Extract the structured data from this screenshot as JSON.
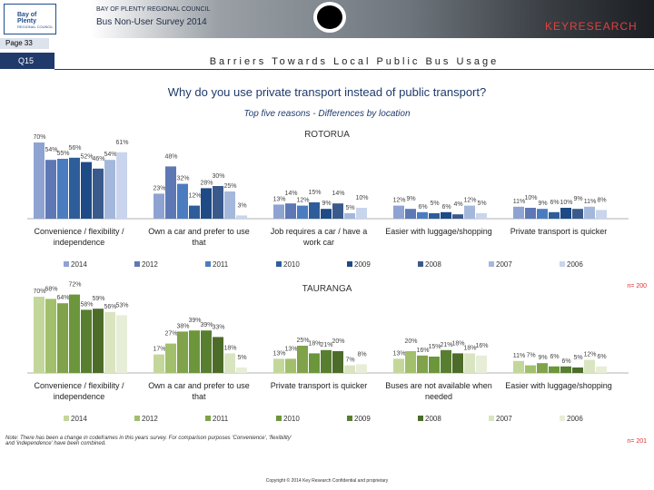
{
  "header": {
    "org": "BAY OF PLENTY REGIONAL COUNCIL",
    "survey": "Bus Non-User Survey 2014",
    "logo_left": "Bay of Plenty",
    "logo_left_sub": "REGIONAL COUNCIL",
    "logo_right": "KEYRESEARCH",
    "page": "Page 33",
    "question": "Q15",
    "section": "Barriers Towards Local Public Bus Usage"
  },
  "question_text": "Why do you use private transport instead of public transport?",
  "subtitle": "Top five reasons - Differences by location",
  "chart_data": [
    {
      "type": "bar",
      "title": "ROTORUA",
      "sample": "n= 200",
      "categories": [
        "Convenience / flexibility / independence",
        "Own a car and prefer to use that",
        "Job requires a car / have a work car",
        "Easier with luggage/shopping",
        "Private transport is quicker"
      ],
      "series": [
        {
          "name": "2014",
          "color": "#8fa3d2",
          "values": [
            70,
            23,
            13,
            12,
            11
          ],
          "value_labels": [
            "70%",
            "23%",
            "13%",
            "12%",
            "11%"
          ]
        },
        {
          "name": "2012",
          "color": "#5d78b5",
          "values": [
            54,
            48,
            14,
            9,
            10
          ],
          "value_labels": [
            "54%",
            "48%",
            "14%",
            "9%",
            "10%"
          ]
        },
        {
          "name": "2011",
          "color": "#4b7cc0",
          "values": [
            55,
            32,
            12,
            6,
            9
          ],
          "value_labels": [
            "55%",
            "32%",
            "12%",
            "6%",
            "9%"
          ]
        },
        {
          "name": "2010",
          "color": "#2f5d99",
          "values": [
            56,
            12,
            15,
            5,
            6
          ],
          "value_labels": [
            "56%",
            "12%",
            "15%",
            "5%",
            "6%"
          ]
        },
        {
          "name": "2009",
          "color": "#1e4a86",
          "values": [
            52,
            28,
            9,
            6,
            10
          ],
          "value_labels": [
            "52%",
            "28%",
            "9%",
            "6%",
            "10%"
          ]
        },
        {
          "name": "2008",
          "color": "#3b5a8c",
          "values": [
            46,
            30,
            14,
            4,
            9
          ],
          "value_labels": [
            "46%",
            "30%",
            "14%",
            "4%",
            "9%"
          ]
        },
        {
          "name": "2007",
          "color": "#a4b8dc",
          "values": [
            54,
            25,
            5,
            12,
            11
          ],
          "value_labels": [
            "54%",
            "25%",
            "5%",
            "12%",
            "11%"
          ]
        },
        {
          "name": "2006",
          "color": "#c9d5ec",
          "values": [
            61,
            3,
            10,
            5,
            8
          ],
          "value_labels": [
            "61%",
            "3%",
            "10%",
            "5%",
            "8%"
          ]
        }
      ]
    },
    {
      "type": "bar",
      "title": "TAURANGA",
      "sample": "n= 201",
      "categories": [
        "Convenience / flexibility / independence",
        "Own a car and prefer to use that",
        "Private transport is quicker",
        "Buses are not available when needed",
        "Easier with luggage/shopping"
      ],
      "series": [
        {
          "name": "2014",
          "color": "#c4d79b",
          "values": [
            70,
            17,
            13,
            13,
            11
          ],
          "value_labels": [
            "70%",
            "17%",
            "13%",
            "13%",
            "11%"
          ]
        },
        {
          "name": "2012",
          "color": "#a2bf6b",
          "values": [
            68,
            27,
            13,
            20,
            7
          ],
          "value_labels": [
            "68%",
            "27%",
            "13%",
            "20%",
            "7%"
          ]
        },
        {
          "name": "2011",
          "color": "#7fa24b",
          "values": [
            64,
            38,
            25,
            16,
            9
          ],
          "value_labels": [
            "64%",
            "38%",
            "25%",
            "16%",
            "9%"
          ]
        },
        {
          "name": "2010",
          "color": "#6b963b",
          "values": [
            72,
            39,
            18,
            15,
            6
          ],
          "value_labels": [
            "72%",
            "39%",
            "18%",
            "15%",
            "6%"
          ]
        },
        {
          "name": "2009",
          "color": "#587f30",
          "values": [
            58,
            39,
            21,
            21,
            6
          ],
          "value_labels": [
            "58%",
            "39%",
            "21%",
            "21%",
            "6%"
          ]
        },
        {
          "name": "2008",
          "color": "#4d6c2a",
          "values": [
            59,
            33,
            20,
            18,
            5
          ],
          "value_labels": [
            "59%",
            "33%",
            "20%",
            "18%",
            "5%"
          ]
        },
        {
          "name": "2007",
          "color": "#d9e5c1",
          "values": [
            56,
            18,
            7,
            18,
            12
          ],
          "value_labels": [
            "56%",
            "18%",
            "7%",
            "18%",
            "12%"
          ]
        },
        {
          "name": "2006",
          "color": "#e7eed8",
          "values": [
            53,
            5,
            8,
            16,
            6
          ],
          "value_labels": [
            "53%",
            "5%",
            "8%",
            "16%",
            "6%"
          ]
        }
      ]
    }
  ],
  "note": "Note: There has been a change in codeframes in this years survey. For comparison purposes 'Convenience', 'flexibility' and 'independence' have been combined.",
  "copyright": "Copyright © 2014 Key Research Confidential and proprietary"
}
